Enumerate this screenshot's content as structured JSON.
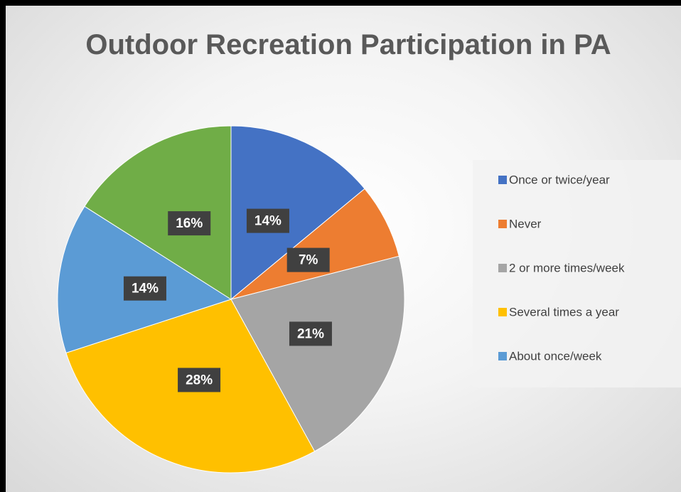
{
  "chart_data": {
    "type": "pie",
    "title": "Outdoor Recreation Participation in PA",
    "categories": [
      "Once or twice/year",
      "Never",
      "2 or more times/week",
      "Several times a year",
      "About once/week",
      null
    ],
    "values": [
      14,
      7,
      21,
      28,
      14,
      16
    ],
    "value_labels": [
      "14%",
      "7%",
      "21%",
      "28%",
      "14%",
      "16%"
    ],
    "colors": [
      "#4472c4",
      "#ed7d31",
      "#a5a5a5",
      "#ffc000",
      "#5b9bd5",
      "#70ad47"
    ],
    "legend": "right"
  }
}
